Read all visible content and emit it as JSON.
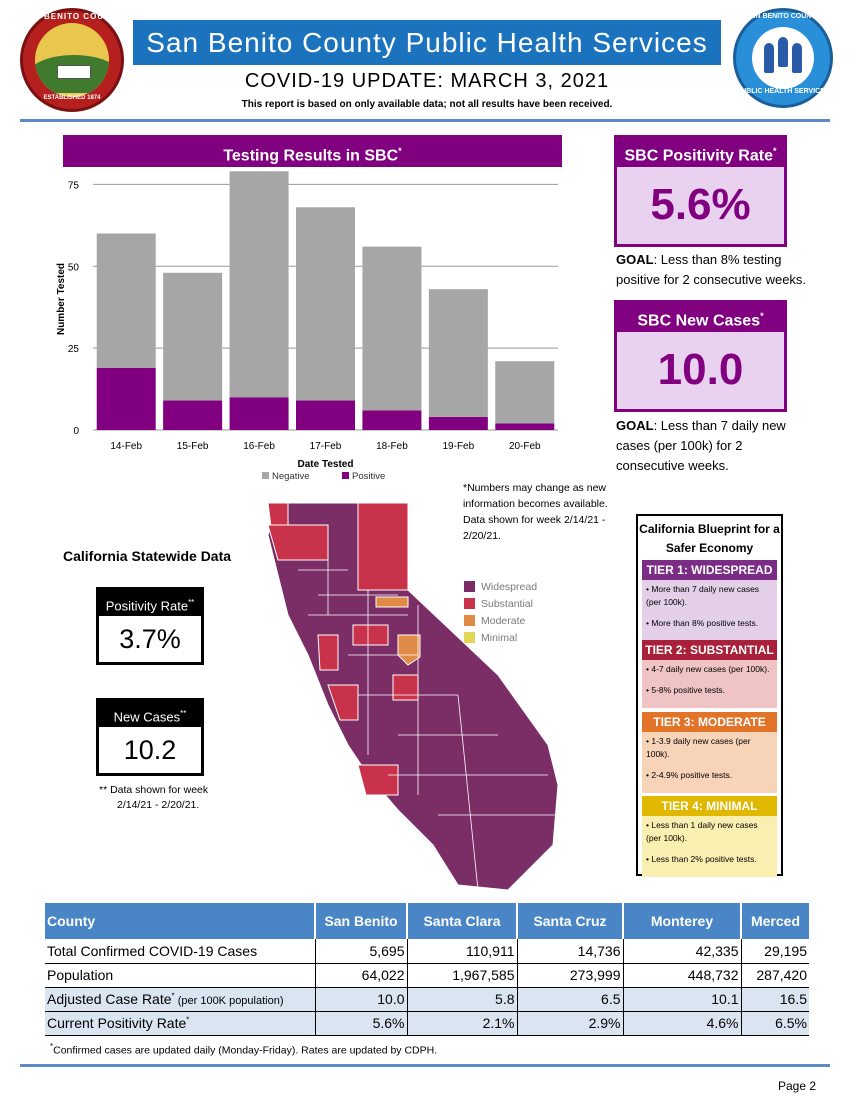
{
  "header": {
    "seal_left_top": "SAN BENITO COUNTY",
    "seal_left_bottom": "ESTABLISHED 1874",
    "title": "San Benito County Public Health Services",
    "subtitle": "COVID-19 UPDATE: MARCH 3, 2021",
    "note": "This report is based on only available data; not all results have been received.",
    "seal_right_top": "SAN BENITO COUNTY",
    "seal_right_bottom": "PUBLIC HEALTH SERVICES"
  },
  "chart_data": {
    "type": "bar",
    "stacked": true,
    "title": "Testing Results in SBC",
    "title_mark": "*",
    "xlabel": "Date Tested",
    "ylabel": "Number Tested",
    "categories": [
      "14-Feb",
      "15-Feb",
      "16-Feb",
      "17-Feb",
      "18-Feb",
      "19-Feb",
      "20-Feb"
    ],
    "ylim": [
      0,
      80
    ],
    "yticks": [
      0,
      25,
      50,
      75
    ],
    "grid": true,
    "legend": "bottom",
    "series": [
      {
        "name": "Positive",
        "color": "#800080",
        "values": [
          19,
          9,
          10,
          9,
          6,
          4,
          2
        ]
      },
      {
        "name": "Negative",
        "color": "#a6a6a6",
        "values": [
          41,
          39,
          69,
          59,
          50,
          39,
          19
        ]
      }
    ]
  },
  "sbc": {
    "positivity_label": "SBC Positivity Rate",
    "positivity_value": "5.6%",
    "positivity_goal_bold": "GOAL",
    "positivity_goal_text": ": Less than 8% testing positive for 2 consecutive weeks.",
    "cases_label": "SBC New Cases",
    "cases_value": "10.0",
    "cases_goal_bold": "GOAL",
    "cases_goal_text": ": Less than 7 daily new cases (per 100k) for 2 consecutive weeks.",
    "mark": "*"
  },
  "numbers_note": "*Numbers may change as new information becomes available. Data shown for week 2/14/21 - 2/20/21.",
  "california": {
    "title": "California Statewide Data",
    "positivity_label": "Positivity Rate",
    "positivity_value": "3.7%",
    "cases_label": "New Cases",
    "cases_value": "10.2",
    "mark": "**",
    "note_line1": "** Data shown for week",
    "note_line2": "2/14/21 - 2/20/21.",
    "legend": [
      {
        "label": "Widespread",
        "color": "#7b2d66"
      },
      {
        "label": "Substantial",
        "color": "#c8324a"
      },
      {
        "label": "Moderate",
        "color": "#df8a46"
      },
      {
        "label": "Minimal",
        "color": "#e3d45a"
      }
    ]
  },
  "blueprint": {
    "title": "California Blueprint for a Safer Economy",
    "tiers": [
      {
        "name": "TIER 1: WIDESPREAD",
        "head_color": "#7b2d86",
        "body_color": "#e4cfe8",
        "items": [
          "• More than 7 daily new cases (per 100k).",
          "• More than 8% positive tests."
        ]
      },
      {
        "name": "TIER 2: SUBSTANTIAL",
        "head_color": "#a8203a",
        "body_color": "#f0c4c4",
        "items": [
          "• 4-7 daily new cases (per 100k).",
          "• 5-8% positive tests."
        ]
      },
      {
        "name": "TIER 3: MODERATE",
        "head_color": "#e2742a",
        "body_color": "#f7d3b8",
        "items": [
          "• 1-3.9 daily new cases (per 100k).",
          "• 2-4.9% positive tests."
        ]
      },
      {
        "name": "TIER 4: MINIMAL",
        "head_color": "#e0b800",
        "body_color": "#f9efb0",
        "items": [
          "• Less than 1 daily new cases (per 100k).",
          "• Less than 2% positive tests."
        ]
      }
    ]
  },
  "table": {
    "headers": [
      "County",
      "San Benito",
      "Santa Clara",
      "Santa Cruz",
      "Monterey",
      "Merced"
    ],
    "rows": [
      {
        "label": "Total Confirmed COVID-19 Cases",
        "label_small": "",
        "mark": "",
        "values": [
          "5,695",
          "110,911",
          "14,736",
          "42,335",
          "29,195"
        ]
      },
      {
        "label": "Population",
        "label_small": "",
        "mark": "",
        "values": [
          "64,022",
          "1,967,585",
          "273,999",
          "448,732",
          "287,420"
        ]
      },
      {
        "label": "Adjusted Case Rate",
        "label_small": " (per 100K population)",
        "mark": "*",
        "values": [
          "10.0",
          "5.8",
          "6.5",
          "10.1",
          "16.5"
        ]
      },
      {
        "label": "Current Positivity Rate",
        "label_small": "",
        "mark": "*",
        "values": [
          "5.6%",
          "2.1%",
          "2.9%",
          "4.6%",
          "6.5%"
        ]
      }
    ]
  },
  "footnote_mark": "*",
  "footnote": "Confirmed cases are updated daily (Monday-Friday). Rates are updated by CDPH.",
  "page_number": "Page 2"
}
